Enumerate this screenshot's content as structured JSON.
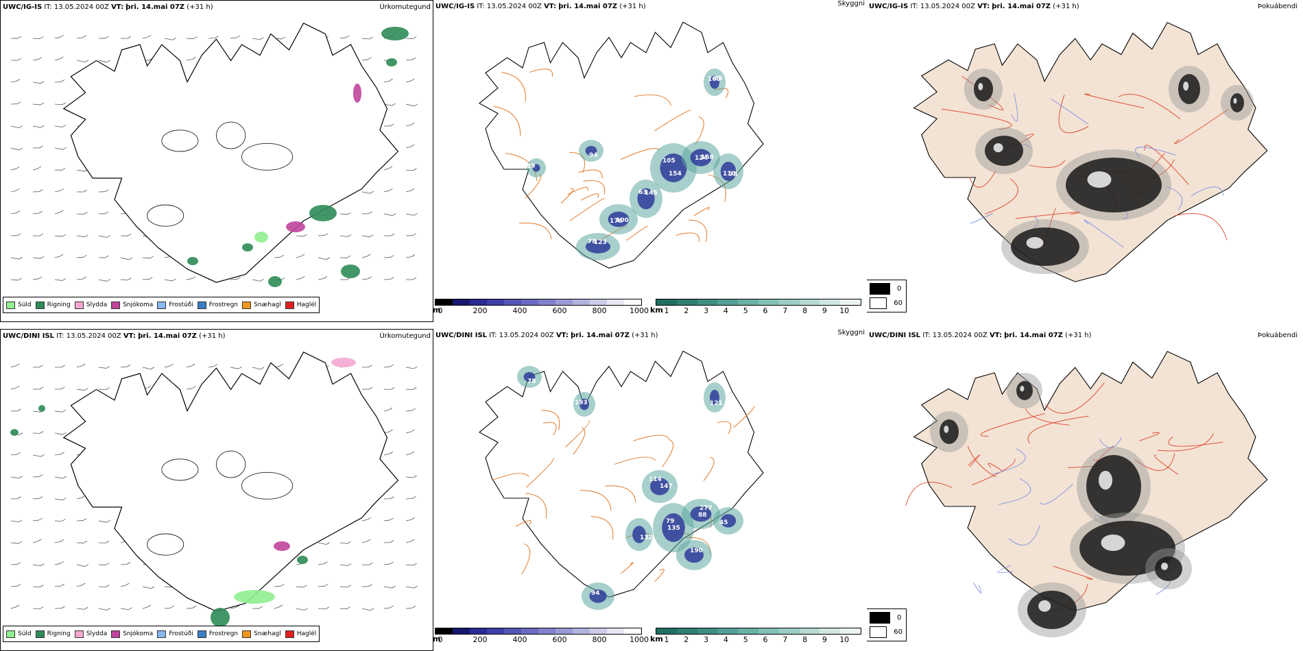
{
  "colors": {
    "sudl": "#90ee90",
    "rigning": "#2e8b57",
    "slydda": "#f4a8d0",
    "snjokoma": "#c0449c",
    "frostudi": "#87b8ee",
    "frostregn": "#3b7dc4",
    "snaehagl": "#f0961e",
    "haglel": "#e02020",
    "coast": "#000000",
    "roads": "#e07a2a",
    "land": "#f3e3d4",
    "rivers": "#7b8fe6"
  },
  "rows": [
    {
      "precip": {
        "model": "UWC/IG-IS",
        "it_label": "IT:",
        "it_value": "13.05.2024 00Z",
        "vt_label": "VT:",
        "vt_value": "þri. 14.mai 07Z",
        "lead": "(+31 h)",
        "title": "Úrkomutegund"
      },
      "vis": {
        "model": "UWC/IG-IS",
        "it_label": "IT:",
        "it_value": "13.05.2024 00Z",
        "vt_label": "VT:",
        "vt_value": "þri. 14.mai 07Z",
        "lead": "(+31 h)",
        "title": "Skyggni",
        "cloud_labels": [
          "105",
          "124",
          "145",
          "176",
          "123",
          "78",
          "160",
          "94",
          "89",
          "154",
          "158",
          "63",
          "100",
          "78",
          "110",
          "88"
        ]
      },
      "fog": {
        "model": "UWC/IG-IS",
        "it_label": "IT:",
        "it_value": "13.05.2024 00Z",
        "vt_label": "VT:",
        "vt_value": "þri. 14.mai 07Z",
        "lead": "(+31 h)",
        "title": "Þokuábendi"
      }
    },
    {
      "precip": {
        "model": "UWC/DINI ISL",
        "it_label": "IT:",
        "it_value": "13.05.2024 00Z",
        "vt_label": "VT:",
        "vt_value": "þri. 14.mai 07Z",
        "lead": "(+31 h)",
        "title": "Úrkomutegund"
      },
      "vis": {
        "model": "UWC/DINI ISL",
        "it_label": "IT:",
        "it_value": "13.05.2024 00Z",
        "vt_label": "VT:",
        "vt_value": "þri. 14.mai 07Z",
        "lead": "(+31 h)",
        "title": "Skyggni",
        "cloud_labels": [
          "114",
          "135",
          "277",
          "45",
          "190",
          "132",
          "94",
          "78",
          "193",
          "121",
          "147",
          "79",
          "88"
        ]
      },
      "fog": {
        "model": "UWC/DINI ISL",
        "it_label": "IT:",
        "it_value": "13.05.2024 00Z",
        "vt_label": "VT:",
        "vt_value": "þri. 14.mai 07Z",
        "lead": "(+31 h)",
        "title": "Þokuábendi"
      }
    }
  ],
  "precip_legend": [
    "Súld",
    "Rigning",
    "Slydda",
    "Snjókoma",
    "Frostúði",
    "Frostregn",
    "Snæhagl",
    "Haglél"
  ],
  "ceiling_bar": {
    "unit": "m",
    "ticks": [
      "0",
      "200",
      "400",
      "600",
      "800",
      "1000"
    ]
  },
  "vis_bar": {
    "unit": "km",
    "ticks": [
      "1",
      "2",
      "3",
      "4",
      "5",
      "6",
      "7",
      "8",
      "9",
      "10"
    ]
  },
  "cloud_legend": [
    "0",
    "60"
  ]
}
